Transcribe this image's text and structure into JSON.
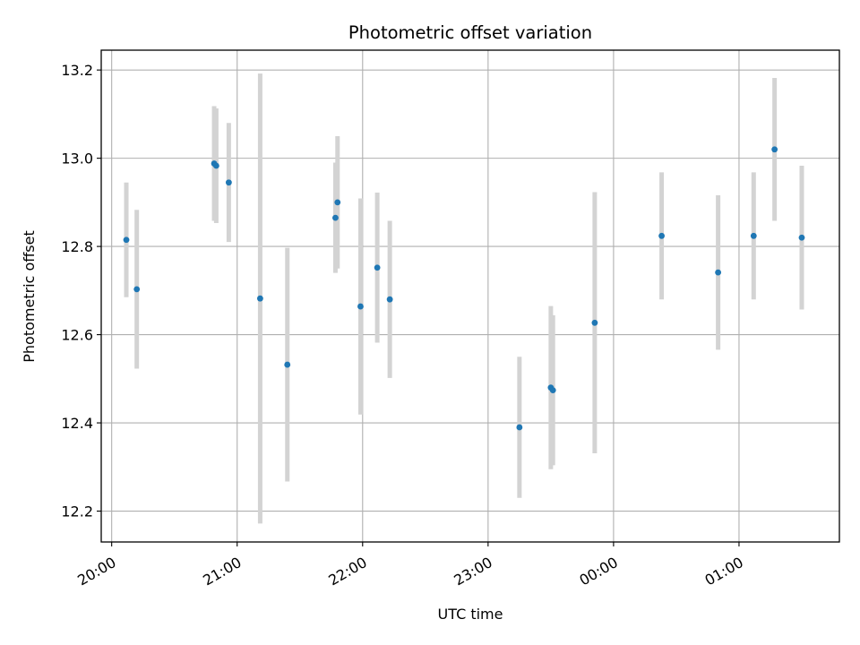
{
  "chart_data": {
    "type": "scatter",
    "title": "Photometric offset variation",
    "xlabel": "UTC time",
    "ylabel": "Photometric offset",
    "x_ticks": [
      "20:00",
      "21:00",
      "22:00",
      "23:00",
      "00:00",
      "01:00"
    ],
    "y_ticks": [
      "12.2",
      "12.4",
      "12.6",
      "12.8",
      "13.0",
      "13.2"
    ],
    "xlim_minutes": [
      -5,
      348
    ],
    "ylim": [
      12.13,
      13.245
    ],
    "grid": true,
    "series": [
      {
        "marker_color": "#1f77b4",
        "errorbar_color": "#d3d3d3",
        "points": [
          {
            "time": "20:07",
            "y": 12.815,
            "err": 0.13
          },
          {
            "time": "20:12",
            "y": 12.703,
            "err": 0.18
          },
          {
            "time": "20:49",
            "y": 12.988,
            "err": 0.13
          },
          {
            "time": "20:50",
            "y": 12.983,
            "err": 0.13
          },
          {
            "time": "20:56",
            "y": 12.945,
            "err": 0.135
          },
          {
            "time": "21:11",
            "y": 12.682,
            "err": 0.51
          },
          {
            "time": "21:24",
            "y": 12.532,
            "err": 0.265
          },
          {
            "time": "21:47",
            "y": 12.865,
            "err": 0.125
          },
          {
            "time": "21:48",
            "y": 12.9,
            "err": 0.15
          },
          {
            "time": "21:59",
            "y": 12.664,
            "err": 0.245
          },
          {
            "time": "22:07",
            "y": 12.752,
            "err": 0.17
          },
          {
            "time": "22:13",
            "y": 12.68,
            "err": 0.178
          },
          {
            "time": "23:15",
            "y": 12.39,
            "err": 0.16
          },
          {
            "time": "23:30",
            "y": 12.48,
            "err": 0.185
          },
          {
            "time": "23:31",
            "y": 12.474,
            "err": 0.17
          },
          {
            "time": "23:51",
            "y": 12.627,
            "err": 0.296
          },
          {
            "time": "00:23",
            "y": 12.824,
            "err": 0.144
          },
          {
            "time": "00:50",
            "y": 12.741,
            "err": 0.175
          },
          {
            "time": "01:07",
            "y": 12.824,
            "err": 0.144
          },
          {
            "time": "01:17",
            "y": 13.02,
            "err": 0.162
          },
          {
            "time": "01:30",
            "y": 12.82,
            "err": 0.163
          }
        ]
      }
    ]
  }
}
